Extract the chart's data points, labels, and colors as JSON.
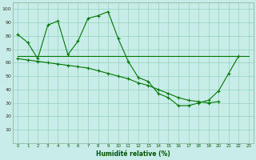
{
  "background_color": "#c8ede8",
  "grid_color": "#88ccbb",
  "line_color": "#007700",
  "xlabel": "Humidité relative (%)",
  "ylim": [
    0,
    105
  ],
  "xlim": [
    -0.5,
    23.5
  ],
  "yticks": [
    10,
    20,
    30,
    40,
    50,
    60,
    70,
    80,
    90,
    100
  ],
  "xticks": [
    0,
    1,
    2,
    3,
    4,
    5,
    6,
    7,
    8,
    9,
    10,
    11,
    12,
    13,
    14,
    15,
    16,
    17,
    18,
    19,
    20,
    21,
    22,
    23
  ],
  "curve1_x": [
    0,
    1,
    2,
    3,
    4,
    5,
    6,
    7,
    8,
    9,
    10,
    11,
    12,
    13,
    14,
    15,
    16,
    17,
    18,
    19,
    20,
    21,
    22
  ],
  "curve1_y": [
    81,
    75,
    63,
    88,
    91,
    66,
    76,
    93,
    95,
    98,
    78,
    61,
    49,
    46,
    37,
    34,
    28,
    28,
    30,
    32,
    39,
    52,
    65
  ],
  "curve2_x": [
    0,
    1,
    2,
    3,
    4,
    5,
    6,
    7,
    8,
    9,
    10,
    11,
    12,
    13,
    14,
    15,
    16,
    17,
    18,
    19,
    20,
    21,
    22,
    23
  ],
  "curve2_y": [
    65,
    65,
    65,
    65,
    65,
    65,
    65,
    65,
    65,
    65,
    65,
    65,
    65,
    65,
    65,
    65,
    65,
    65,
    65,
    65,
    65,
    65,
    65,
    65
  ],
  "curve3_x": [
    0,
    1,
    2,
    3,
    4,
    5,
    6,
    7,
    8,
    9,
    10,
    11,
    12,
    13,
    14,
    15,
    16,
    17,
    18,
    19,
    20
  ],
  "curve3_y": [
    63,
    62,
    61,
    60,
    59,
    58,
    57,
    56,
    54,
    52,
    50,
    48,
    45,
    43,
    40,
    37,
    34,
    32,
    31,
    30,
    31
  ]
}
